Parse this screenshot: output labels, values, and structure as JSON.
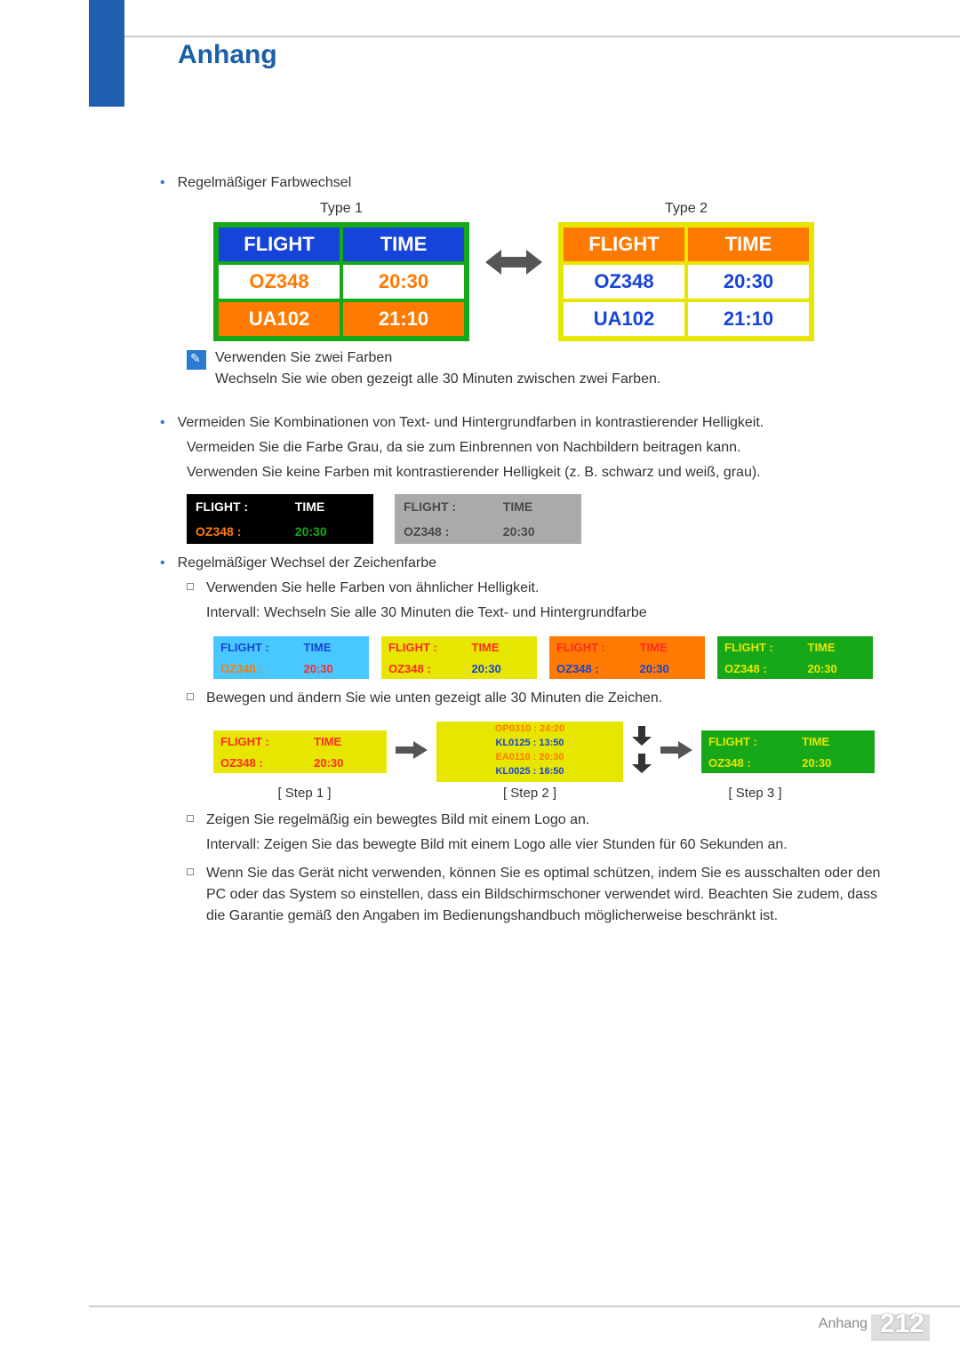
{
  "header": {
    "title": "Anhang"
  },
  "section1": {
    "bullet": "Regelmäßiger Farbwechsel",
    "type1_label": "Type 1",
    "type2_label": "Type 2",
    "table1": {
      "border_color": "#17a81a",
      "rows": [
        {
          "cells": [
            "FLIGHT",
            "TIME"
          ],
          "bg": "#1744d8",
          "fg": "#ffffff"
        },
        {
          "cells": [
            "OZ348",
            "20:30"
          ],
          "bg": "#ffffff",
          "fg": "#ff7a00"
        },
        {
          "cells": [
            "UA102",
            "21:10"
          ],
          "bg": "#ff7a00",
          "fg": "#ffffff"
        }
      ]
    },
    "table2": {
      "border_color": "#e6e600",
      "rows": [
        {
          "cells": [
            "FLIGHT",
            "TIME"
          ],
          "bg": "#ff7a00",
          "fg": "#ffffff"
        },
        {
          "cells": [
            "OZ348",
            "20:30"
          ],
          "bg": "#ffffff",
          "fg": "#1744d8"
        },
        {
          "cells": [
            "UA102",
            "21:10"
          ],
          "bg": "#ffffff",
          "fg": "#1744d8"
        }
      ]
    },
    "note1": "Verwenden Sie zwei Farben",
    "note2": "Wechseln Sie wie oben gezeigt alle 30 Minuten zwischen zwei Farben."
  },
  "section2": {
    "bullet1": "Vermeiden Sie Kombinationen von Text- und Hintergrundfarben in kontrastierender Helligkeit.",
    "p1": "Vermeiden Sie die Farbe Grau, da sie zum Einbrennen von Nachbildern beitragen kann.",
    "p2": "Verwenden Sie keine Farben mit kontrastierender Helligkeit (z. B. schwarz und weiß, grau).",
    "contrast_tables": [
      {
        "bg": "#000000",
        "row1_fg": "#ffffff",
        "row2_l_fg": "#ff7a00",
        "row2_r_fg": "#17a81a",
        "r1l": "FLIGHT   :",
        "r1r": "TIME",
        "r2l": "OZ348    :",
        "r2r": "20:30"
      },
      {
        "bg": "#aaaaaa",
        "row1_fg": "#4a4a4a",
        "row2_l_fg": "#4a4a4a",
        "row2_r_fg": "#4a4a4a",
        "r1l": "FLIGHT   :",
        "r1r": "TIME",
        "r2l": "OZ348    :",
        "r2r": "20:30"
      }
    ]
  },
  "section3": {
    "bullet": "Regelmäßiger Wechsel der Zeichenfarbe",
    "sq1": "Verwenden Sie helle Farben von ähnlicher Helligkeit.",
    "sq1b": "Intervall: Wechseln Sie alle 30 Minuten die Text- und Hintergrundfarbe",
    "four": [
      {
        "bg": "#49c8ff",
        "r1fg": "#1744d8",
        "r2fgL": "#ff7a00",
        "r2fgR": "#ff2a2a"
      },
      {
        "bg": "#e6e600",
        "r1fg": "#ff2a2a",
        "r2fgL": "#ff2a2a",
        "r2fgR": "#1744d8"
      },
      {
        "bg": "#ff7a00",
        "r1fg": "#ff2a2a",
        "r2fgL": "#1744d8",
        "r2fgR": "#1744d8"
      },
      {
        "bg": "#17a81a",
        "r1fg": "#e6e600",
        "r2fgL": "#e6e600",
        "r2fgR": "#e6e600"
      }
    ],
    "four_text": {
      "r1l": "FLIGHT   :",
      "r1r": "TIME",
      "r2l": "OZ348    :",
      "r2r": "20:30"
    },
    "sq2": "Bewegen und ändern Sie wie unten gezeigt alle 30 Minuten die Zeichen.",
    "steps": {
      "step1": {
        "bg": "#e6e600",
        "r1fg": "#ff2a2a",
        "r2fg": "#ff2a2a"
      },
      "step3": {
        "bg": "#17a81a",
        "r1fg": "#e6e600",
        "r2fg": "#e6e600"
      },
      "txt": {
        "r1l": "FLIGHT   :",
        "r1r": "TIME",
        "r2l": "OZ348    :",
        "r2r": "20:30"
      },
      "mid_lines": [
        "OP0310  :  24:20",
        "KL0125  :  13:50",
        "EA0110  :  20:30",
        "KL0025  :  16:50"
      ],
      "labels": [
        "[ Step 1 ]",
        "[ Step 2 ]",
        "[ Step 3 ]"
      ]
    },
    "sq3": "Zeigen Sie regelmäßig ein bewegtes Bild mit einem Logo an.",
    "sq3b": "Intervall: Zeigen Sie das bewegte Bild mit einem Logo alle vier Stunden für 60 Sekunden an.",
    "sq4": "Wenn Sie das Gerät nicht verwenden, können Sie es optimal schützen, indem Sie es ausschalten oder den PC oder das System so einstellen, dass ein Bildschirmschoner verwendet wird. Beachten Sie zudem, dass die Garantie gemäß den Angaben im Bedienungshandbuch möglicherweise beschränkt ist."
  },
  "footer": {
    "label": "Anhang",
    "page": "212"
  }
}
